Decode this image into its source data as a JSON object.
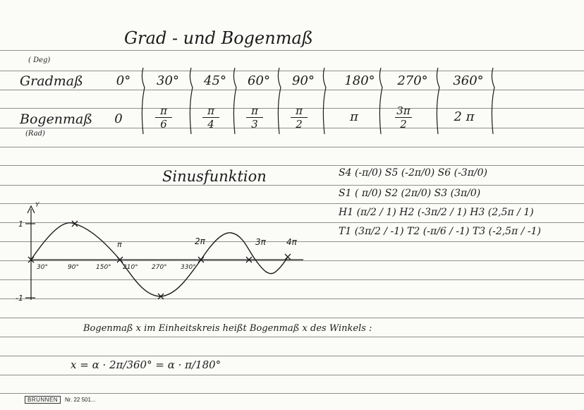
{
  "title": "Grad - und Bogenmaß",
  "table": {
    "deg_unit": "( Deg)",
    "rad_unit": "(Rad)",
    "row1_label": "Gradmaß",
    "row2_label": "Bogenmaß",
    "degrees": [
      "0°",
      "30°",
      "45°",
      "60°",
      "90°",
      "180°",
      "270°",
      "360°"
    ],
    "radians": [
      {
        "text": "0"
      },
      {
        "num": "π",
        "den": "6"
      },
      {
        "num": "π",
        "den": "4"
      },
      {
        "num": "π",
        "den": "3"
      },
      {
        "num": "π",
        "den": "2"
      },
      {
        "text": "π"
      },
      {
        "num": "3π",
        "den": "2"
      },
      {
        "text": "2 π"
      }
    ]
  },
  "sine": {
    "heading": "Sinusfunktion",
    "y_axis_label": "Y",
    "y_tick_pos": "1",
    "y_tick_neg": "-1",
    "x_ticks": [
      "30°",
      "90°",
      "150°",
      "210°",
      "270°",
      "330°"
    ],
    "pi_marks": [
      "π",
      "2π",
      "3π",
      "4π"
    ]
  },
  "points": [
    "S4 (-π/0)  S5 (-2π/0)  S6 (-3π/0)",
    "S1 ( π/0)  S2 (2π/0)  S3 (3π/0)",
    "H1 (π/2 / 1)  H2 (-3π/2 / 1)  H3 (2,5π / 1)",
    "T1 (3π/2 / -1)  T2 (-π/6 / -1)  T3 (-2,5π / -1)"
  ],
  "definition": "Bogenmaß x im Einheitskreis heißt Bogenmaß x des Winkels :",
  "formula": "x = α · 2π/360° = α · π/180°",
  "footer": {
    "brand": "BRUNNEN",
    "number": "Nr. 22 501..."
  }
}
